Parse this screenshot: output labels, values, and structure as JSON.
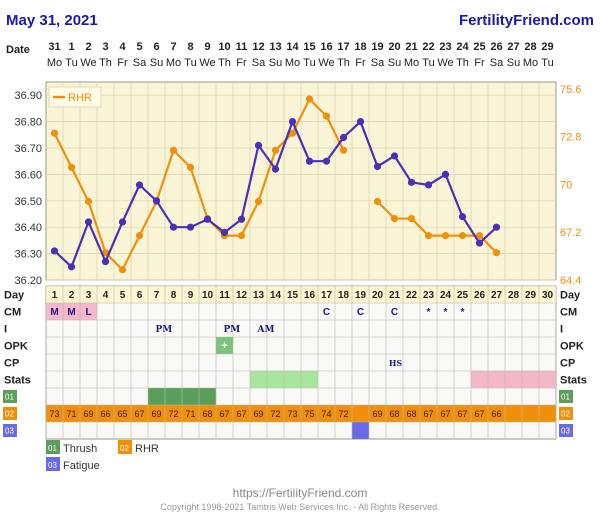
{
  "header": {
    "date": "May 31, 2021",
    "site": "FertilityFriend.com"
  },
  "footer": {
    "url": "https://FertilityFriend.com",
    "copyright": "Copyright 1998-2021 Tamtris Web Services Inc. - All Rights Reserved."
  },
  "colors": {
    "bt": "#4a30b8",
    "rhr": "#f0900a",
    "grid_bg": "#fbf5d8",
    "thrush": "#5a9e5a",
    "fatigue": "#6a6ae8",
    "stats_green": "#a8e6a0",
    "stats_pink": "#f3b8c8",
    "cm_pink": "#f4b8c8"
  },
  "labels": {
    "date": "Date",
    "day": "Day",
    "cm": "CM",
    "i": "I",
    "opk": "OPK",
    "cp": "CP",
    "stats": "Stats",
    "code01": "01",
    "code02": "02",
    "code03": "03"
  },
  "legend": {
    "rhr": "RHR",
    "thrush": "Thrush",
    "rhr_code": "RHR",
    "fatigue": "Fatigue"
  },
  "dates": [
    "31",
    "1",
    "2",
    "3",
    "4",
    "5",
    "6",
    "7",
    "8",
    "9",
    "10",
    "11",
    "12",
    "13",
    "14",
    "15",
    "16",
    "17",
    "18",
    "19",
    "20",
    "21",
    "22",
    "23",
    "24",
    "25",
    "26",
    "27",
    "28",
    "29"
  ],
  "weekdays": [
    "Mo",
    "Tu",
    "We",
    "Th",
    "Fr",
    "Sa",
    "Su",
    "Mo",
    "Tu",
    "We",
    "Th",
    "Fr",
    "Sa",
    "Su",
    "Mo",
    "Tu",
    "We",
    "Th",
    "Fr",
    "Sa",
    "Su",
    "Mo",
    "Tu",
    "We",
    "Th",
    "Fr",
    "Sa",
    "Su",
    "Mo",
    "Tu"
  ],
  "cm_row": [
    "M",
    "M",
    "L",
    "",
    "",
    "",
    "",
    "",
    "",
    "",
    "",
    "",
    "",
    "",
    "",
    "",
    "C",
    "",
    "C",
    "",
    "C",
    "",
    "*",
    "*",
    "*",
    "",
    "",
    "",
    "",
    ""
  ],
  "i_row": [
    {
      "day": 7,
      "text": "PM"
    },
    {
      "day": 11,
      "text": "PM"
    },
    {
      "day": 13,
      "text": "AM"
    }
  ],
  "opk_row": [
    {
      "day": 11,
      "text": "+"
    }
  ],
  "cp_row": [
    {
      "day": 21,
      "text": "HS"
    }
  ],
  "rhr_codes": [
    "73",
    "71",
    "69",
    "66",
    "65",
    "67",
    "69",
    "72",
    "71",
    "68",
    "67",
    "67",
    "69",
    "72",
    "73",
    "75",
    "74",
    "72",
    "",
    "69",
    "68",
    "68",
    "67",
    "67",
    "67",
    "67",
    "66",
    "",
    "",
    ""
  ],
  "chart_data": {
    "type": "line",
    "x_label": "Day",
    "x": [
      1,
      2,
      3,
      4,
      5,
      6,
      7,
      8,
      9,
      10,
      11,
      12,
      13,
      14,
      15,
      16,
      17,
      18,
      19,
      20,
      21,
      22,
      23,
      24,
      25,
      26,
      27,
      28,
      29,
      30
    ],
    "left_axis": {
      "ticks": [
        36.2,
        36.3,
        36.4,
        36.5,
        36.6,
        36.7,
        36.8,
        36.9
      ],
      "range": [
        36.2,
        36.95
      ]
    },
    "right_axis": {
      "ticks": [
        64.4,
        67.2,
        70,
        72.8,
        75.6
      ],
      "range": [
        64.4,
        76
      ]
    },
    "series": [
      {
        "name": "",
        "axis": "left",
        "values": [
          36.31,
          36.25,
          36.42,
          36.27,
          36.42,
          36.56,
          36.5,
          36.4,
          36.4,
          36.43,
          36.38,
          36.43,
          36.71,
          36.62,
          36.8,
          36.65,
          36.65,
          36.74,
          36.8,
          36.63,
          36.67,
          36.57,
          36.56,
          36.6,
          36.44,
          36.34,
          36.4,
          null,
          null,
          null
        ]
      },
      {
        "name": "RHR",
        "axis": "right",
        "values": [
          73,
          71,
          69,
          66,
          65,
          67,
          69,
          72,
          71,
          68,
          67,
          67,
          69,
          72,
          73,
          75,
          74,
          72,
          null,
          69,
          68,
          68,
          67,
          67,
          67,
          67,
          66,
          null,
          null,
          null
        ]
      }
    ],
    "thrush_days": [
      7,
      8,
      9,
      10
    ],
    "fatigue_days": [
      19
    ],
    "stats_green_days": [
      13,
      14,
      15,
      16
    ],
    "stats_pink_days": [
      26,
      27,
      28,
      29,
      30
    ],
    "grid": true
  }
}
